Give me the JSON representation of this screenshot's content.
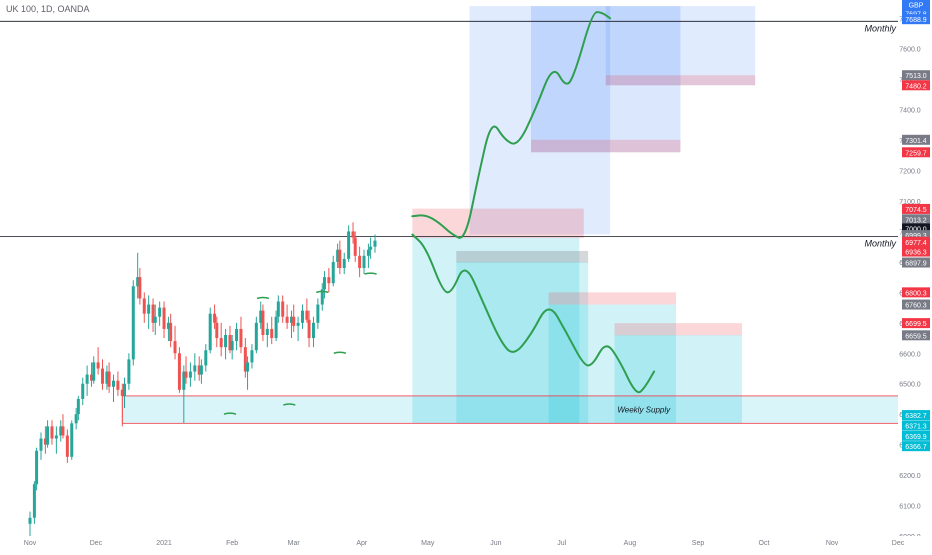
{
  "header": {
    "symbol_label": "UK 100, 1D, OANDA"
  },
  "chart_data": {
    "type": "candlestick",
    "title": "UK 100, 1D, OANDA",
    "ylim": [
      6000,
      7760
    ],
    "x_months": [
      {
        "label": "Nov",
        "day": 0
      },
      {
        "label": "Dec",
        "day": 30
      },
      {
        "label": "2021",
        "day": 61
      },
      {
        "label": "Feb",
        "day": 92
      },
      {
        "label": "Mar",
        "day": 120
      },
      {
        "label": "Apr",
        "day": 151
      },
      {
        "label": "May",
        "day": 181
      },
      {
        "label": "Jun",
        "day": 212
      },
      {
        "label": "Jul",
        "day": 242
      },
      {
        "label": "Aug",
        "day": 273
      },
      {
        "label": "Sep",
        "day": 304
      },
      {
        "label": "Oct",
        "day": 334
      },
      {
        "label": "Nov",
        "day": 365
      },
      {
        "label": "Dec",
        "day": 395
      }
    ],
    "y_ticks": [
      6000,
      6100,
      6200,
      6300,
      6400,
      6500,
      6600,
      6700,
      6800,
      6900,
      7000,
      7100,
      7200,
      7300,
      7400,
      7500,
      7600,
      7700
    ],
    "y_tick_labels": [
      "6000.0",
      "6100.0",
      "6200.0",
      "6300.0",
      "6400.0",
      "6500.0",
      "6600.0",
      "6700.0",
      "6800.0",
      "6900.0",
      "7000.0",
      "7100.0",
      "7200.0",
      "7300.0",
      "7400.0",
      "7500.0",
      "7600.0",
      "7700.0"
    ],
    "price_tags": [
      {
        "label": "GBP",
        "value": 7745,
        "color": "#3179f5"
      },
      {
        "label": "7697.8",
        "value": 7716,
        "color": "#3179f5"
      },
      {
        "label": "7688.9",
        "value": 7697,
        "color": "#3179f5"
      },
      {
        "label": "7513.0",
        "value": 7513,
        "color": "#787b86"
      },
      {
        "label": "7480.2",
        "value": 7480,
        "color": "#f23645"
      },
      {
        "label": "7301.4",
        "value": 7301,
        "color": "#787b86"
      },
      {
        "label": "7259.7",
        "value": 7260,
        "color": "#f23645"
      },
      {
        "label": "7074.5",
        "value": 7074,
        "color": "#f23645"
      },
      {
        "label": "7013.2",
        "value": 7040,
        "color": "#787b86"
      },
      {
        "label": "7000.0",
        "value": 7010,
        "color": "#131722"
      },
      {
        "label": "6999.3",
        "value": 6988,
        "color": "#787b86"
      },
      {
        "label": "6977.4",
        "value": 6966,
        "color": "#f23645"
      },
      {
        "label": "6936.3",
        "value": 6934,
        "color": "#f23645"
      },
      {
        "label": "6897.9",
        "value": 6898,
        "color": "#787b86"
      },
      {
        "label": "6800.3",
        "value": 6800,
        "color": "#f23645"
      },
      {
        "label": "6760.3",
        "value": 6760,
        "color": "#787b86"
      },
      {
        "label": "6699.5",
        "value": 6699,
        "color": "#f23645"
      },
      {
        "label": "6659.5",
        "value": 6659,
        "color": "#787b86"
      },
      {
        "label": "6382.7",
        "value": 6397,
        "color": "#00bcd4"
      },
      {
        "label": "6371.3",
        "value": 6363,
        "color": "#00bcd4"
      },
      {
        "label": "6369.9",
        "value": 6329,
        "color": "#00bcd4"
      },
      {
        "label": "6366.7",
        "value": 6295,
        "color": "#00bcd4"
      }
    ],
    "horizontal_lines": [
      {
        "value": 7690,
        "label": "Monthly",
        "color": "#131722"
      },
      {
        "value": 6983,
        "label": "Monthly",
        "color": "#131722"
      }
    ],
    "zones": [
      {
        "name": "weekly-supply",
        "label": "Weekly Supply",
        "x0": 174,
        "x1": 421,
        "y0": 6370,
        "y1": 6460,
        "fill": "rgba(0,188,212,0.15)",
        "stroke": "#f23645"
      }
    ],
    "candles": [
      {
        "d": 0,
        "o": 6040,
        "h": 6080,
        "l": 5990,
        "c": 6060
      },
      {
        "d": 2,
        "o": 6060,
        "h": 6180,
        "l": 6040,
        "c": 6170
      },
      {
        "d": 3,
        "o": 6170,
        "h": 6290,
        "l": 6150,
        "c": 6280
      },
      {
        "d": 5,
        "o": 6280,
        "h": 6340,
        "l": 6250,
        "c": 6320
      },
      {
        "d": 7,
        "o": 6320,
        "h": 6360,
        "l": 6270,
        "c": 6300
      },
      {
        "d": 8,
        "o": 6300,
        "h": 6380,
        "l": 6290,
        "c": 6360
      },
      {
        "d": 10,
        "o": 6360,
        "h": 6380,
        "l": 6300,
        "c": 6320
      },
      {
        "d": 12,
        "o": 6320,
        "h": 6360,
        "l": 6270,
        "c": 6330
      },
      {
        "d": 14,
        "o": 6330,
        "h": 6380,
        "l": 6310,
        "c": 6360
      },
      {
        "d": 15,
        "o": 6360,
        "h": 6400,
        "l": 6320,
        "c": 6330
      },
      {
        "d": 17,
        "o": 6330,
        "h": 6350,
        "l": 6240,
        "c": 6260
      },
      {
        "d": 19,
        "o": 6260,
        "h": 6380,
        "l": 6250,
        "c": 6370
      },
      {
        "d": 21,
        "o": 6370,
        "h": 6420,
        "l": 6350,
        "c": 6400
      },
      {
        "d": 22,
        "o": 6400,
        "h": 6460,
        "l": 6380,
        "c": 6450
      },
      {
        "d": 24,
        "o": 6450,
        "h": 6520,
        "l": 6430,
        "c": 6500
      },
      {
        "d": 26,
        "o": 6500,
        "h": 6560,
        "l": 6460,
        "c": 6530
      },
      {
        "d": 28,
        "o": 6530,
        "h": 6570,
        "l": 6490,
        "c": 6510
      },
      {
        "d": 29,
        "o": 6510,
        "h": 6590,
        "l": 6500,
        "c": 6570
      },
      {
        "d": 31,
        "o": 6570,
        "h": 6620,
        "l": 6530,
        "c": 6550
      },
      {
        "d": 33,
        "o": 6550,
        "h": 6580,
        "l": 6480,
        "c": 6500
      },
      {
        "d": 35,
        "o": 6500,
        "h": 6560,
        "l": 6480,
        "c": 6540
      },
      {
        "d": 36,
        "o": 6540,
        "h": 6570,
        "l": 6470,
        "c": 6490
      },
      {
        "d": 38,
        "o": 6490,
        "h": 6530,
        "l": 6440,
        "c": 6510
      },
      {
        "d": 40,
        "o": 6510,
        "h": 6540,
        "l": 6460,
        "c": 6480
      },
      {
        "d": 42,
        "o": 6480,
        "h": 6500,
        "l": 6360,
        "c": 6460
      },
      {
        "d": 43,
        "o": 6460,
        "h": 6520,
        "l": 6420,
        "c": 6500
      },
      {
        "d": 45,
        "o": 6500,
        "h": 6600,
        "l": 6480,
        "c": 6580
      },
      {
        "d": 47,
        "o": 6580,
        "h": 6840,
        "l": 6560,
        "c": 6820
      },
      {
        "d": 49,
        "o": 6820,
        "h": 6930,
        "l": 6780,
        "c": 6850
      },
      {
        "d": 50,
        "o": 6850,
        "h": 6880,
        "l": 6760,
        "c": 6780
      },
      {
        "d": 52,
        "o": 6780,
        "h": 6800,
        "l": 6700,
        "c": 6730
      },
      {
        "d": 54,
        "o": 6730,
        "h": 6790,
        "l": 6680,
        "c": 6760
      },
      {
        "d": 56,
        "o": 6760,
        "h": 6780,
        "l": 6670,
        "c": 6700
      },
      {
        "d": 57,
        "o": 6700,
        "h": 6760,
        "l": 6660,
        "c": 6720
      },
      {
        "d": 59,
        "o": 6720,
        "h": 6770,
        "l": 6690,
        "c": 6750
      },
      {
        "d": 61,
        "o": 6750,
        "h": 6770,
        "l": 6650,
        "c": 6680
      },
      {
        "d": 63,
        "o": 6680,
        "h": 6720,
        "l": 6640,
        "c": 6700
      },
      {
        "d": 64,
        "o": 6700,
        "h": 6730,
        "l": 6620,
        "c": 6640
      },
      {
        "d": 66,
        "o": 6640,
        "h": 6690,
        "l": 6580,
        "c": 6600
      },
      {
        "d": 68,
        "o": 6600,
        "h": 6620,
        "l": 6470,
        "c": 6480
      },
      {
        "d": 70,
        "o": 6480,
        "h": 6560,
        "l": 6370,
        "c": 6540
      },
      {
        "d": 71,
        "o": 6540,
        "h": 6590,
        "l": 6500,
        "c": 6520
      },
      {
        "d": 73,
        "o": 6520,
        "h": 6570,
        "l": 6490,
        "c": 6540
      },
      {
        "d": 75,
        "o": 6540,
        "h": 6600,
        "l": 6510,
        "c": 6560
      },
      {
        "d": 77,
        "o": 6560,
        "h": 6590,
        "l": 6510,
        "c": 6530
      },
      {
        "d": 78,
        "o": 6530,
        "h": 6580,
        "l": 6500,
        "c": 6560
      },
      {
        "d": 80,
        "o": 6560,
        "h": 6630,
        "l": 6540,
        "c": 6610
      },
      {
        "d": 82,
        "o": 6610,
        "h": 6750,
        "l": 6600,
        "c": 6730
      },
      {
        "d": 84,
        "o": 6730,
        "h": 6760,
        "l": 6680,
        "c": 6700
      },
      {
        "d": 85,
        "o": 6700,
        "h": 6720,
        "l": 6620,
        "c": 6650
      },
      {
        "d": 87,
        "o": 6650,
        "h": 6700,
        "l": 6590,
        "c": 6620
      },
      {
        "d": 89,
        "o": 6620,
        "h": 6680,
        "l": 6580,
        "c": 6660
      },
      {
        "d": 91,
        "o": 6660,
        "h": 6690,
        "l": 6600,
        "c": 6610
      },
      {
        "d": 92,
        "o": 6610,
        "h": 6660,
        "l": 6580,
        "c": 6640
      },
      {
        "d": 94,
        "o": 6640,
        "h": 6700,
        "l": 6610,
        "c": 6680
      },
      {
        "d": 96,
        "o": 6680,
        "h": 6720,
        "l": 6600,
        "c": 6620
      },
      {
        "d": 98,
        "o": 6620,
        "h": 6650,
        "l": 6520,
        "c": 6540
      },
      {
        "d": 99,
        "o": 6540,
        "h": 6590,
        "l": 6480,
        "c": 6570
      },
      {
        "d": 101,
        "o": 6570,
        "h": 6630,
        "l": 6550,
        "c": 6610
      },
      {
        "d": 103,
        "o": 6610,
        "h": 6720,
        "l": 6600,
        "c": 6700
      },
      {
        "d": 105,
        "o": 6700,
        "h": 6770,
        "l": 6680,
        "c": 6740
      },
      {
        "d": 106,
        "o": 6740,
        "h": 6760,
        "l": 6640,
        "c": 6660
      },
      {
        "d": 108,
        "o": 6660,
        "h": 6700,
        "l": 6620,
        "c": 6680
      },
      {
        "d": 110,
        "o": 6680,
        "h": 6720,
        "l": 6630,
        "c": 6650
      },
      {
        "d": 112,
        "o": 6650,
        "h": 6740,
        "l": 6640,
        "c": 6720
      },
      {
        "d": 113,
        "o": 6720,
        "h": 6790,
        "l": 6700,
        "c": 6770
      },
      {
        "d": 115,
        "o": 6770,
        "h": 6790,
        "l": 6700,
        "c": 6720
      },
      {
        "d": 117,
        "o": 6720,
        "h": 6760,
        "l": 6680,
        "c": 6700
      },
      {
        "d": 119,
        "o": 6700,
        "h": 6740,
        "l": 6650,
        "c": 6720
      },
      {
        "d": 120,
        "o": 6720,
        "h": 6760,
        "l": 6670,
        "c": 6690
      },
      {
        "d": 122,
        "o": 6690,
        "h": 6720,
        "l": 6640,
        "c": 6700
      },
      {
        "d": 124,
        "o": 6700,
        "h": 6760,
        "l": 6680,
        "c": 6740
      },
      {
        "d": 126,
        "o": 6740,
        "h": 6780,
        "l": 6700,
        "c": 6710
      },
      {
        "d": 127,
        "o": 6710,
        "h": 6740,
        "l": 6620,
        "c": 6650
      },
      {
        "d": 129,
        "o": 6650,
        "h": 6720,
        "l": 6620,
        "c": 6700
      },
      {
        "d": 131,
        "o": 6700,
        "h": 6780,
        "l": 6680,
        "c": 6760
      },
      {
        "d": 133,
        "o": 6760,
        "h": 6830,
        "l": 6740,
        "c": 6810
      },
      {
        "d": 134,
        "o": 6810,
        "h": 6870,
        "l": 6780,
        "c": 6850
      },
      {
        "d": 136,
        "o": 6850,
        "h": 6880,
        "l": 6800,
        "c": 6830
      },
      {
        "d": 138,
        "o": 6830,
        "h": 6920,
        "l": 6820,
        "c": 6900
      },
      {
        "d": 140,
        "o": 6900,
        "h": 6960,
        "l": 6880,
        "c": 6940
      },
      {
        "d": 141,
        "o": 6940,
        "h": 6970,
        "l": 6860,
        "c": 6880
      },
      {
        "d": 143,
        "o": 6880,
        "h": 6930,
        "l": 6860,
        "c": 6910
      },
      {
        "d": 145,
        "o": 6910,
        "h": 7020,
        "l": 6900,
        "c": 7000
      },
      {
        "d": 147,
        "o": 7000,
        "h": 7030,
        "l": 6960,
        "c": 6980
      },
      {
        "d": 148,
        "o": 6980,
        "h": 7000,
        "l": 6900,
        "c": 6920
      },
      {
        "d": 150,
        "o": 6920,
        "h": 6950,
        "l": 6850,
        "c": 6880
      },
      {
        "d": 152,
        "o": 6880,
        "h": 6940,
        "l": 6860,
        "c": 6920
      },
      {
        "d": 154,
        "o": 6920,
        "h": 6960,
        "l": 6880,
        "c": 6940
      },
      {
        "d": 155,
        "o": 6940,
        "h": 6980,
        "l": 6910,
        "c": 6950
      },
      {
        "d": 157,
        "o": 6950,
        "h": 6990,
        "l": 6930,
        "c": 6970
      }
    ],
    "projection_paths": [
      {
        "name": "bullish-projection",
        "points": [
          [
            174,
            7050
          ],
          [
            180,
            7055
          ],
          [
            186,
            7030
          ],
          [
            192,
            6990
          ],
          [
            198,
            6970
          ],
          [
            204,
            7180
          ],
          [
            210,
            7370
          ],
          [
            216,
            7300
          ],
          [
            222,
            7280
          ],
          [
            230,
            7400
          ],
          [
            238,
            7550
          ],
          [
            244,
            7470
          ],
          [
            248,
            7520
          ],
          [
            256,
            7720
          ],
          [
            260,
            7720
          ],
          [
            264,
            7700
          ]
        ]
      },
      {
        "name": "bearish-projection",
        "points": [
          [
            174,
            6990
          ],
          [
            180,
            6950
          ],
          [
            188,
            6800
          ],
          [
            192,
            6800
          ],
          [
            198,
            6900
          ],
          [
            206,
            6770
          ],
          [
            214,
            6640
          ],
          [
            220,
            6590
          ],
          [
            228,
            6660
          ],
          [
            236,
            6770
          ],
          [
            244,
            6670
          ],
          [
            252,
            6560
          ],
          [
            256,
            6560
          ],
          [
            262,
            6640
          ],
          [
            268,
            6580
          ],
          [
            276,
            6460
          ],
          [
            280,
            6490
          ],
          [
            284,
            6540
          ]
        ]
      }
    ],
    "projection_boxes": [
      {
        "name": "long-box-1",
        "x0": 200,
        "x1": 264,
        "y0": 6990,
        "y1": 7740,
        "fill": "rgba(49,121,245,0.15)"
      },
      {
        "name": "long-box-2",
        "x0": 228,
        "x1": 296,
        "y0": 7260,
        "y1": 7740,
        "fill": "rgba(49,121,245,0.18)"
      },
      {
        "name": "long-box-3",
        "x0": 262,
        "x1": 330,
        "y0": 7480,
        "y1": 7740,
        "fill": "rgba(49,121,245,0.15)"
      },
      {
        "name": "short-box-1",
        "x0": 174,
        "x1": 250,
        "y0": 6370,
        "y1": 6980,
        "fill": "rgba(0,188,212,0.18)"
      },
      {
        "name": "short-box-2",
        "x0": 194,
        "x1": 254,
        "y0": 6370,
        "y1": 6900,
        "fill": "rgba(0,188,212,0.18)"
      },
      {
        "name": "short-box-3",
        "x0": 236,
        "x1": 294,
        "y0": 6370,
        "y1": 6760,
        "fill": "rgba(0,188,212,0.18)"
      },
      {
        "name": "short-box-4",
        "x0": 266,
        "x1": 324,
        "y0": 6370,
        "y1": 6660,
        "fill": "rgba(0,188,212,0.18)"
      },
      {
        "name": "supply-red-1",
        "x0": 174,
        "x1": 252,
        "y0": 6978,
        "y1": 7075,
        "fill": "rgba(242,54,69,0.2)"
      },
      {
        "name": "supply-red-2",
        "x0": 194,
        "x1": 254,
        "y0": 6898,
        "y1": 6936,
        "fill": "rgba(120,123,134,0.3)"
      },
      {
        "name": "supply-red-3",
        "x0": 236,
        "x1": 294,
        "y0": 6760,
        "y1": 6800,
        "fill": "rgba(242,54,69,0.2)"
      },
      {
        "name": "supply-red-4",
        "x0": 266,
        "x1": 324,
        "y0": 6659,
        "y1": 6699,
        "fill": "rgba(242,54,69,0.2)"
      },
      {
        "name": "supply-red-5",
        "x0": 228,
        "x1": 296,
        "y0": 7260,
        "y1": 7301,
        "fill": "rgba(242,54,69,0.2)"
      },
      {
        "name": "supply-red-6",
        "x0": 262,
        "x1": 330,
        "y0": 7480,
        "y1": 7513,
        "fill": "rgba(242,54,69,0.2)"
      }
    ],
    "swing_marks": [
      {
        "d": 91,
        "value": 6400
      },
      {
        "d": 106,
        "value": 6780
      },
      {
        "d": 118,
        "value": 6430
      },
      {
        "d": 133,
        "value": 6800
      },
      {
        "d": 141,
        "value": 6600
      },
      {
        "d": 155,
        "value": 6860
      }
    ],
    "colors": {
      "up": "#26a69a",
      "down": "#ef5350",
      "projection": "#2e9e4f",
      "axis_text": "#787b86"
    }
  }
}
